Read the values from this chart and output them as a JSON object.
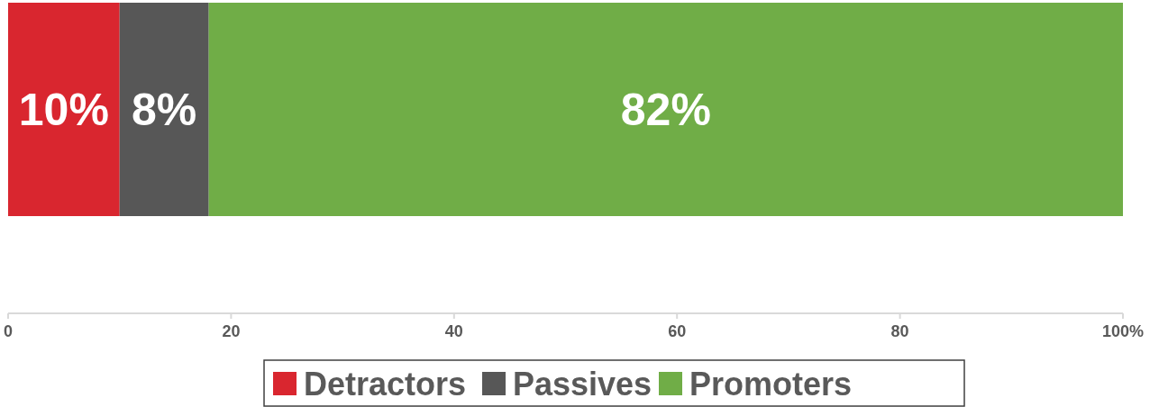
{
  "chart_data": {
    "type": "bar",
    "orientation": "horizontal",
    "stacked": true,
    "categories": [
      null
    ],
    "series": [
      {
        "name": "Detractors",
        "color": "#d9262f",
        "values": [
          10
        ],
        "value_labels": [
          "10%"
        ]
      },
      {
        "name": "Passives",
        "color": "#575757",
        "values": [
          8
        ],
        "value_labels": [
          "8%"
        ]
      },
      {
        "name": "Promoters",
        "color": "#70ad47",
        "values": [
          82
        ],
        "value_labels": [
          "82%"
        ]
      }
    ],
    "xlim": [
      0,
      100
    ],
    "xticks": [
      0,
      20,
      40,
      60,
      80,
      {
        "value": 100,
        "label": "100%"
      }
    ],
    "grid": false,
    "legend": "bottom"
  }
}
